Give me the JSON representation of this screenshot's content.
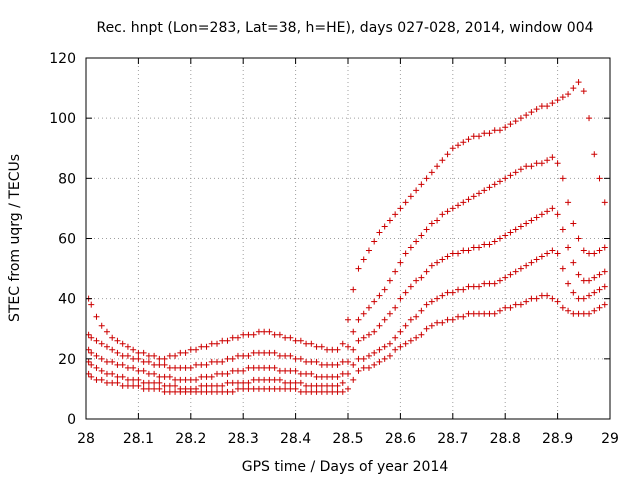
{
  "chart_data": {
    "type": "scatter",
    "title": "Rec. hnpt (Lon=283, Lat=38, h=HE), days 027-028, 2014, window 004",
    "xlabel": "GPS time / Days of year 2014",
    "ylabel": "STEC from uqrg / TECUs",
    "xlim": [
      28,
      29
    ],
    "ylim": [
      0,
      120
    ],
    "xticks": [
      "28",
      "28.1",
      "28.2",
      "28.3",
      "28.4",
      "28.5",
      "28.6",
      "28.7",
      "28.8",
      "28.9",
      "29"
    ],
    "yticks": [
      "0",
      "20",
      "40",
      "60",
      "80",
      "100",
      "120"
    ],
    "grid": true,
    "marker": "+",
    "color": "#cc0000",
    "series": [
      {
        "x": [
          28.005,
          28.01,
          28.02,
          28.03,
          28.04,
          28.05,
          28.06,
          28.07,
          28.08,
          28.09,
          28.1,
          28.11,
          28.12,
          28.13,
          28.14,
          28.15,
          28.16,
          28.17,
          28.18,
          28.19,
          28.2,
          28.21,
          28.22,
          28.23,
          28.24,
          28.25,
          28.26,
          28.27,
          28.28,
          28.29,
          28.3,
          28.31,
          28.32,
          28.33,
          28.34,
          28.35,
          28.36,
          28.37,
          28.38,
          28.39,
          28.4,
          28.41,
          28.42,
          28.43,
          28.44,
          28.45,
          28.46,
          28.47,
          28.48,
          28.49,
          28.5,
          28.51,
          28.52,
          28.53,
          28.54,
          28.55,
          28.56,
          28.57,
          28.58,
          28.59,
          28.6,
          28.61,
          28.62,
          28.63,
          28.64,
          28.65,
          28.66,
          28.67,
          28.68,
          28.69,
          28.7,
          28.71,
          28.72,
          28.73,
          28.74,
          28.75,
          28.76,
          28.77,
          28.78,
          28.79,
          28.8,
          28.81,
          28.82,
          28.83,
          28.84,
          28.85,
          28.86,
          28.87,
          28.88,
          28.89,
          28.9,
          28.91,
          28.92,
          28.93,
          28.94,
          28.95,
          28.96,
          28.97,
          28.98,
          28.99
        ],
        "y": [
          15,
          14,
          13,
          13,
          12,
          12,
          12,
          11,
          11,
          11,
          11,
          10,
          10,
          10,
          10,
          9,
          9,
          9,
          9,
          9,
          9,
          9,
          9,
          9,
          9,
          9,
          9,
          9,
          9,
          10,
          10,
          10,
          10,
          10,
          10,
          10,
          10,
          10,
          10,
          10,
          10,
          9,
          9,
          9,
          9,
          9,
          9,
          9,
          9,
          9,
          10,
          13,
          16,
          17,
          17,
          18,
          19,
          20,
          21,
          23,
          24,
          25,
          26,
          27,
          28,
          30,
          31,
          32,
          32,
          33,
          33,
          34,
          34,
          35,
          35,
          35,
          35,
          35,
          35,
          36,
          37,
          37,
          38,
          38,
          39,
          40,
          40,
          41,
          41,
          40,
          39,
          37,
          36,
          35,
          35,
          35,
          35,
          36,
          37,
          38
        ]
      },
      {
        "x": [
          28.005,
          28.01,
          28.02,
          28.03,
          28.04,
          28.05,
          28.06,
          28.07,
          28.08,
          28.09,
          28.1,
          28.11,
          28.12,
          28.13,
          28.14,
          28.15,
          28.16,
          28.17,
          28.18,
          28.19,
          28.2,
          28.21,
          28.22,
          28.23,
          28.24,
          28.25,
          28.26,
          28.27,
          28.28,
          28.29,
          28.3,
          28.31,
          28.32,
          28.33,
          28.34,
          28.35,
          28.36,
          28.37,
          28.38,
          28.39,
          28.4,
          28.41,
          28.42,
          28.43,
          28.44,
          28.45,
          28.46,
          28.47,
          28.48,
          28.49,
          28.5,
          28.51,
          28.52,
          28.53,
          28.54,
          28.55,
          28.56,
          28.57,
          28.58,
          28.59,
          28.6,
          28.61,
          28.62,
          28.63,
          28.64,
          28.65,
          28.66,
          28.67,
          28.68,
          28.69,
          28.7,
          28.71,
          28.72,
          28.73,
          28.74,
          28.75,
          28.76,
          28.77,
          28.78,
          28.79,
          28.8,
          28.81,
          28.82,
          28.83,
          28.84,
          28.85,
          28.86,
          28.87,
          28.88,
          28.89,
          28.9,
          28.91,
          28.92,
          28.93,
          28.94,
          28.95,
          28.96,
          28.97,
          28.98,
          28.99
        ],
        "y": [
          19,
          18,
          17,
          16,
          15,
          15,
          14,
          14,
          13,
          13,
          13,
          12,
          12,
          12,
          12,
          11,
          11,
          11,
          10,
          10,
          10,
          10,
          11,
          11,
          11,
          11,
          11,
          12,
          12,
          12,
          12,
          12,
          13,
          13,
          13,
          13,
          13,
          13,
          12,
          12,
          12,
          12,
          11,
          11,
          11,
          11,
          11,
          11,
          11,
          12,
          15,
          18,
          20,
          20,
          21,
          22,
          23,
          24,
          25,
          27,
          29,
          31,
          33,
          34,
          36,
          38,
          39,
          40,
          41,
          42,
          42,
          43,
          43,
          44,
          44,
          44,
          45,
          45,
          45,
          46,
          47,
          48,
          49,
          50,
          51,
          52,
          53,
          54,
          55,
          56,
          55,
          50,
          45,
          42,
          40,
          40,
          41,
          42,
          43,
          44
        ]
      },
      {
        "x": [
          28.005,
          28.01,
          28.02,
          28.03,
          28.04,
          28.05,
          28.06,
          28.07,
          28.08,
          28.09,
          28.1,
          28.11,
          28.12,
          28.13,
          28.14,
          28.15,
          28.16,
          28.17,
          28.18,
          28.19,
          28.2,
          28.21,
          28.22,
          28.23,
          28.24,
          28.25,
          28.26,
          28.27,
          28.28,
          28.29,
          28.3,
          28.31,
          28.32,
          28.33,
          28.34,
          28.35,
          28.36,
          28.37,
          28.38,
          28.39,
          28.4,
          28.41,
          28.42,
          28.43,
          28.44,
          28.45,
          28.46,
          28.47,
          28.48,
          28.49,
          28.5,
          28.51,
          28.52,
          28.53,
          28.54,
          28.55,
          28.56,
          28.57,
          28.58,
          28.59,
          28.6,
          28.61,
          28.62,
          28.63,
          28.64,
          28.65,
          28.66,
          28.67,
          28.68,
          28.69,
          28.7,
          28.71,
          28.72,
          28.73,
          28.74,
          28.75,
          28.76,
          28.77,
          28.78,
          28.79,
          28.8,
          28.81,
          28.82,
          28.83,
          28.84,
          28.85,
          28.86,
          28.87,
          28.88,
          28.89,
          28.9,
          28.91,
          28.92,
          28.93,
          28.94,
          28.95,
          28.96,
          28.97,
          28.98,
          28.99
        ],
        "y": [
          23,
          22,
          21,
          20,
          19,
          19,
          18,
          18,
          17,
          17,
          16,
          16,
          15,
          15,
          14,
          14,
          14,
          13,
          13,
          13,
          13,
          13,
          14,
          14,
          14,
          15,
          15,
          15,
          16,
          16,
          16,
          17,
          17,
          17,
          17,
          17,
          17,
          16,
          16,
          16,
          16,
          15,
          15,
          15,
          14,
          14,
          14,
          14,
          14,
          15,
          19,
          23,
          26,
          27,
          28,
          29,
          31,
          33,
          35,
          37,
          40,
          42,
          44,
          46,
          47,
          49,
          51,
          52,
          53,
          54,
          55,
          55,
          56,
          56,
          57,
          57,
          58,
          58,
          59,
          60,
          61,
          62,
          63,
          64,
          65,
          66,
          67,
          68,
          69,
          70,
          68,
          63,
          57,
          52,
          48,
          46,
          46,
          47,
          48,
          49
        ]
      },
      {
        "x": [
          28.005,
          28.01,
          28.02,
          28.03,
          28.04,
          28.05,
          28.06,
          28.07,
          28.08,
          28.09,
          28.1,
          28.11,
          28.12,
          28.13,
          28.14,
          28.15,
          28.16,
          28.17,
          28.18,
          28.19,
          28.2,
          28.21,
          28.22,
          28.23,
          28.24,
          28.25,
          28.26,
          28.27,
          28.28,
          28.29,
          28.3,
          28.31,
          28.32,
          28.33,
          28.34,
          28.35,
          28.36,
          28.37,
          28.38,
          28.39,
          28.4,
          28.41,
          28.42,
          28.43,
          28.44,
          28.45,
          28.46,
          28.47,
          28.48,
          28.49,
          28.5,
          28.51,
          28.52,
          28.53,
          28.54,
          28.55,
          28.56,
          28.57,
          28.58,
          28.59,
          28.6,
          28.61,
          28.62,
          28.63,
          28.64,
          28.65,
          28.66,
          28.67,
          28.68,
          28.69,
          28.7,
          28.71,
          28.72,
          28.73,
          28.74,
          28.75,
          28.76,
          28.77,
          28.78,
          28.79,
          28.8,
          28.81,
          28.82,
          28.83,
          28.84,
          28.85,
          28.86,
          28.87,
          28.88,
          28.89,
          28.9,
          28.91,
          28.92,
          28.93,
          28.94,
          28.95,
          28.96,
          28.97,
          28.98,
          28.99
        ],
        "y": [
          28,
          27,
          26,
          25,
          24,
          23,
          22,
          21,
          21,
          20,
          20,
          19,
          19,
          18,
          18,
          18,
          17,
          17,
          17,
          17,
          17,
          18,
          18,
          18,
          19,
          19,
          19,
          20,
          20,
          21,
          21,
          21,
          22,
          22,
          22,
          22,
          22,
          21,
          21,
          21,
          20,
          20,
          19,
          19,
          19,
          18,
          18,
          18,
          18,
          19,
          24,
          29,
          33,
          35,
          37,
          39,
          41,
          43,
          46,
          49,
          52,
          55,
          57,
          59,
          61,
          63,
          65,
          66,
          68,
          69,
          70,
          71,
          72,
          73,
          74,
          75,
          76,
          77,
          78,
          79,
          80,
          81,
          82,
          83,
          84,
          84,
          85,
          85,
          86,
          87,
          85,
          80,
          72,
          65,
          60,
          56,
          55,
          55,
          56,
          57
        ]
      },
      {
        "x": [
          28.005,
          28.01,
          28.02,
          28.03,
          28.04,
          28.05,
          28.06,
          28.07,
          28.08,
          28.09,
          28.1,
          28.11,
          28.12,
          28.13,
          28.14,
          28.15,
          28.16,
          28.17,
          28.18,
          28.19,
          28.2,
          28.21,
          28.22,
          28.23,
          28.24,
          28.25,
          28.26,
          28.27,
          28.28,
          28.29,
          28.3,
          28.31,
          28.32,
          28.33,
          28.34,
          28.35,
          28.36,
          28.37,
          28.38,
          28.39,
          28.4,
          28.41,
          28.42,
          28.43,
          28.44,
          28.45,
          28.46,
          28.47,
          28.48,
          28.49,
          28.5,
          28.51,
          28.52,
          28.53,
          28.54,
          28.55,
          28.56,
          28.57,
          28.58,
          28.59,
          28.6,
          28.61,
          28.62,
          28.63,
          28.64,
          28.65,
          28.66,
          28.67,
          28.68,
          28.69,
          28.7,
          28.71,
          28.72,
          28.73,
          28.74,
          28.75,
          28.76,
          28.77,
          28.78,
          28.79,
          28.8,
          28.81,
          28.82,
          28.83,
          28.84,
          28.85,
          28.86,
          28.87,
          28.88,
          28.89,
          28.9,
          28.91,
          28.92,
          28.93,
          28.94,
          28.95,
          28.96,
          28.97,
          28.98,
          28.99
        ],
        "y": [
          40,
          38,
          34,
          31,
          29,
          27,
          26,
          25,
          24,
          23,
          22,
          22,
          21,
          21,
          20,
          20,
          21,
          21,
          22,
          22,
          23,
          23,
          24,
          24,
          25,
          25,
          26,
          26,
          27,
          27,
          28,
          28,
          28,
          29,
          29,
          29,
          28,
          28,
          27,
          27,
          26,
          26,
          25,
          25,
          24,
          24,
          23,
          23,
          23,
          25,
          33,
          43,
          50,
          53,
          56,
          59,
          62,
          64,
          66,
          68,
          70,
          72,
          74,
          76,
          78,
          80,
          82,
          84,
          86,
          88,
          90,
          91,
          92,
          93,
          94,
          94,
          95,
          95,
          96,
          96,
          97,
          98,
          99,
          100,
          101,
          102,
          103,
          104,
          104,
          105,
          106,
          107,
          108,
          110,
          112,
          109,
          100,
          88,
          80,
          72
        ]
      }
    ]
  }
}
